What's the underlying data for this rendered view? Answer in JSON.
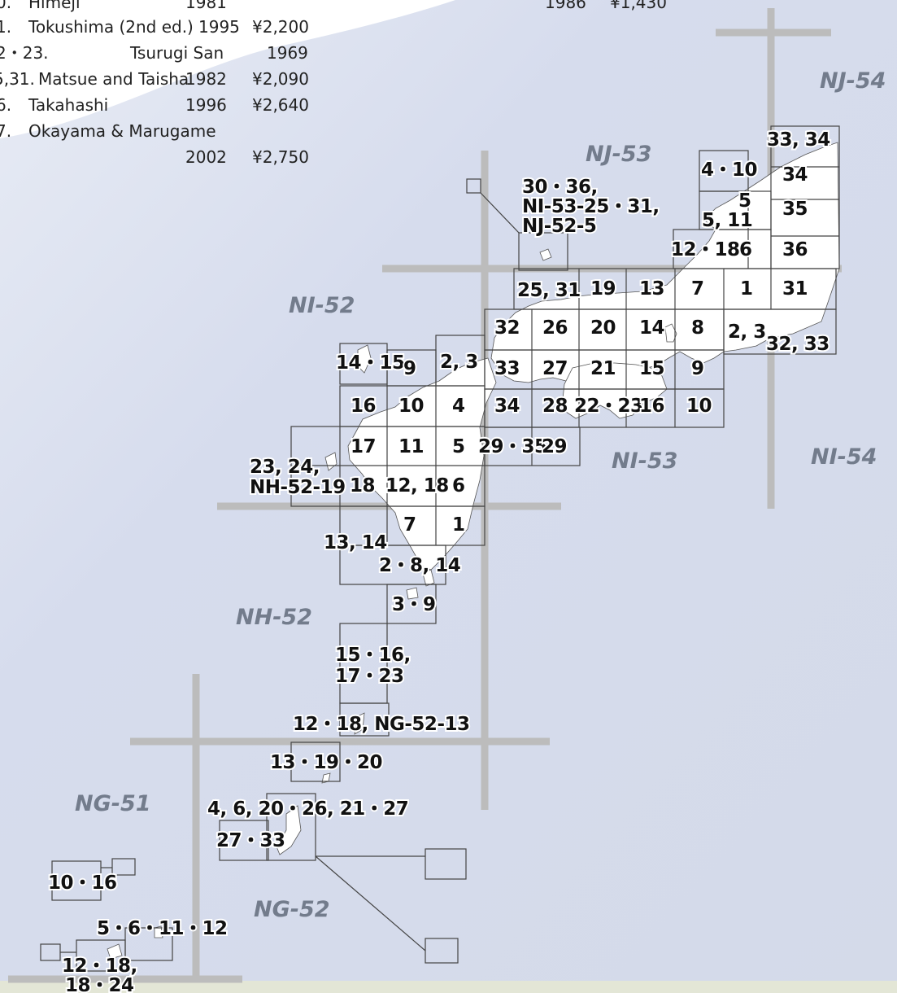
{
  "publication_list": [
    {
      "num": "0.",
      "name": "Himeji",
      "year": "1981",
      "price": ""
    },
    {
      "num": "1.",
      "name": "Tokushima (2nd ed.)",
      "year": "1995",
      "price": "¥2,200"
    },
    {
      "num": "2・23.",
      "name": "Tsurugi San",
      "year": "1969",
      "price": ""
    },
    {
      "num": "5,31.",
      "name": "Matsue and Taisha",
      "year": "1982",
      "price": "¥2,090"
    },
    {
      "num": "6.",
      "name": "Takahashi",
      "year": "1996",
      "price": "¥2,640"
    },
    {
      "num": "7.",
      "name": "Okayama & Marugame",
      "year": "2002",
      "price": "¥2,750"
    }
  ],
  "column2_partial": {
    "year": "1986",
    "price": "¥1,430"
  },
  "zones": [
    "NJ-54",
    "NJ-53",
    "NI-52",
    "NI-53",
    "NI-54",
    "NH-52",
    "NG-51",
    "NG-52"
  ],
  "sheets": [
    "33, 34",
    "34",
    "35",
    "36",
    "31",
    "4・10",
    "5",
    "5, 11",
    "12・18",
    "6",
    "1",
    "7",
    "13",
    "19",
    "25, 31",
    "30・36,",
    "NI-53-25・31,",
    "NJ-52-5",
    "32",
    "26",
    "20",
    "14",
    "8",
    "2, 3",
    "32, 33",
    "14・15",
    "9",
    "2, 3",
    "33",
    "27",
    "21",
    "15",
    "9",
    "16",
    "10",
    "4",
    "34",
    "28",
    "22・23",
    "16",
    "10",
    "17",
    "11",
    "5",
    "29・35",
    "29",
    "23, 24,",
    "NH-52-19",
    "18",
    "12, 18",
    "6",
    "7",
    "1",
    "13, 14",
    "2・8, 14",
    "3・9",
    "15・16,",
    "17・23",
    "12・18, NG-52-13",
    "13・19・20",
    "4, 6, 20・26, 21・27",
    "27・33",
    "10・16",
    "5・6・11・12",
    "12・18,",
    "18・24"
  ],
  "colors": {
    "sea": "#d6dced",
    "land": "#ffffff",
    "grid": "#bcbcbc",
    "zone_label": "#737c8c"
  }
}
